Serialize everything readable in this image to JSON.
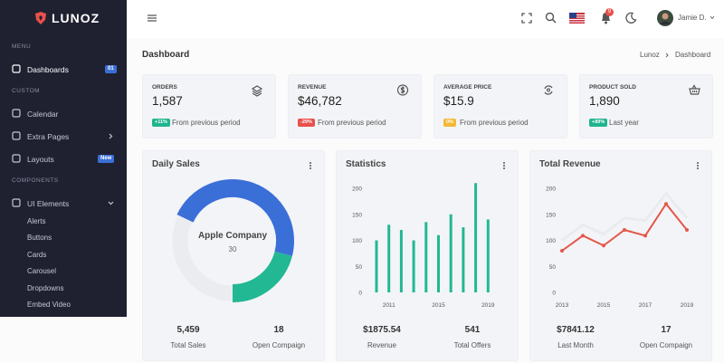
{
  "sidebar": {
    "logo": "LUNOZ",
    "sections": [
      {
        "heading": "MENU",
        "items": [
          {
            "label": "Dashboards",
            "badge": "01"
          }
        ]
      },
      {
        "heading": "CUSTOM",
        "items": [
          {
            "label": "Calendar"
          },
          {
            "label": "Extra Pages"
          },
          {
            "label": "Layouts",
            "badge": "New"
          }
        ]
      },
      {
        "heading": "COMPONENTS",
        "items": [
          {
            "label": "UI Elements",
            "children": [
              "Alerts",
              "Buttons",
              "Cards",
              "Carousel",
              "Dropdowns",
              "Embed Video"
            ]
          }
        ]
      }
    ]
  },
  "topbar": {
    "notifications": "9",
    "user": "Jamie D."
  },
  "page": {
    "title": "Dashboard",
    "breadcrumb": [
      "Lunoz",
      "Dashboard"
    ]
  },
  "stats": [
    {
      "label": "ORDERS",
      "value": "1,587",
      "change": "+11%",
      "color": "#1fb58f",
      "note": "From previous period"
    },
    {
      "label": "REVENUE",
      "value": "$46,782",
      "change": "-29%",
      "color": "#e8514a",
      "note": "From previous period"
    },
    {
      "label": "AVERAGE PRICE",
      "value": "$15.9",
      "change": "0%",
      "color": "#f4b935",
      "note": "From previous period"
    },
    {
      "label": "PRODUCT SOLD",
      "value": "1,890",
      "change": "+89%",
      "color": "#1fb58f",
      "note": "Last year"
    }
  ],
  "chart_data": [
    {
      "type": "donut",
      "title": "Daily Sales",
      "center_label": "Apple Company",
      "center_value": 30,
      "values": [
        32,
        47,
        21
      ],
      "colors": [
        "#ebecf0",
        "#3b6fd8",
        "#22b893"
      ],
      "footer": [
        {
          "value": "5,459",
          "label": "Total Sales"
        },
        {
          "value": "18",
          "label": "Open Compaign"
        }
      ]
    },
    {
      "type": "bar",
      "title": "Statistics",
      "categories": [
        null,
        "2011",
        null,
        null,
        null,
        "2015",
        null,
        null,
        null,
        "2019"
      ],
      "values": [
        100,
        130,
        120,
        100,
        135,
        110,
        150,
        125,
        210,
        140
      ],
      "color": "#22b893",
      "ylim": [
        0,
        200
      ],
      "yticks": [
        0,
        50,
        100,
        150,
        200
      ],
      "footer": [
        {
          "value": "$1875.54",
          "label": "Revenue"
        },
        {
          "value": "541",
          "label": "Total Offers"
        }
      ]
    },
    {
      "type": "line",
      "title": "Total Revenue",
      "x": [
        2013,
        2014,
        2015,
        2016,
        2017,
        2018,
        2019
      ],
      "xlim": [
        2013,
        2019
      ],
      "xticks": [
        2013,
        2015,
        2017,
        2019
      ],
      "ylim": [
        0,
        200
      ],
      "yticks": [
        0,
        50,
        100,
        150,
        200
      ],
      "series": [
        {
          "color": "#e9ebef",
          "values": [
            100,
            130,
            112,
            143,
            138,
            190,
            143
          ]
        },
        {
          "color": "#e4574a",
          "values": [
            80,
            109,
            90,
            120,
            109,
            170,
            120
          ]
        }
      ],
      "footer": [
        {
          "value": "$7841.12",
          "label": "Last Month"
        },
        {
          "value": "17",
          "label": "Open Compaign"
        }
      ]
    }
  ]
}
